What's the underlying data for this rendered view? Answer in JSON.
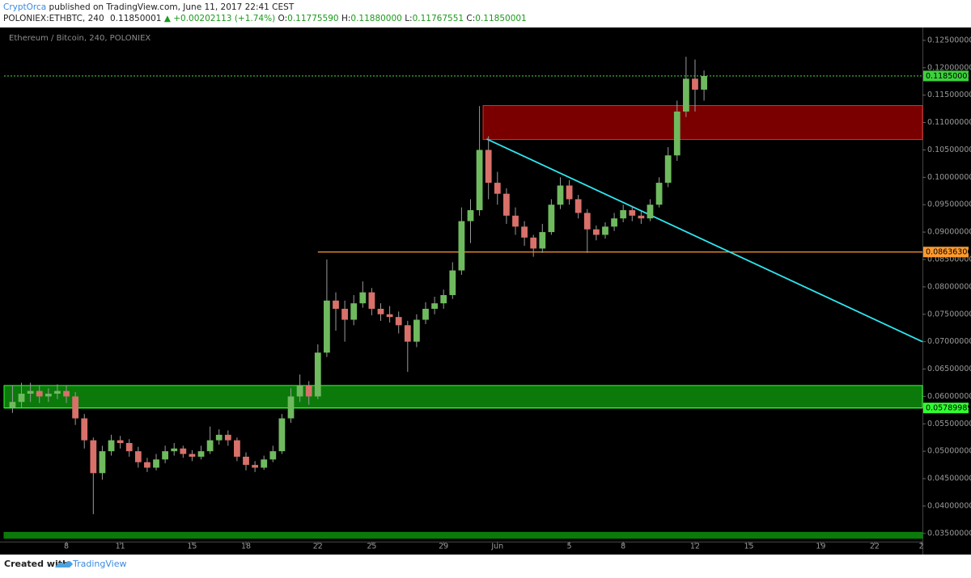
{
  "header": {
    "author": "CryptOrca",
    "published": "published on TradingView.com, June 11, 2017 22:41 CEST"
  },
  "quote": {
    "symbol": "POLONIEX:ETHBTC, 240",
    "last": "0.11850001",
    "change": "▲ +0.00202113 (+1.74%)",
    "o_label": "O:",
    "o": "0.11775590",
    "h_label": "H:",
    "h": "0.11880000",
    "l_label": "L:",
    "l": "0.11767551",
    "c_label": "C:",
    "c": "0.11850001"
  },
  "footer": {
    "created": "Created with",
    "brand": "TradingView"
  },
  "chart_data": {
    "type": "candlestick",
    "title": "Ethereum / Bitcoin, 240, POLONIEX",
    "up_color": "#6fba5e",
    "down_color": "#d9706a",
    "wick_color": "#9a9a9a",
    "x": [
      5.0,
      5.5,
      6.0,
      6.5,
      7.0,
      7.5,
      8.0,
      8.5,
      9.0,
      9.5,
      10.0,
      10.5,
      11.0,
      11.5,
      12.0,
      12.5,
      13.0,
      13.5,
      14.0,
      14.5,
      15.0,
      15.5,
      16.0,
      16.5,
      17.0,
      17.5,
      18.0,
      18.5,
      19.0,
      19.5,
      20.0,
      20.5,
      21.0,
      21.5,
      22.0,
      22.5,
      23.0,
      23.5,
      24.0,
      24.5,
      25.0,
      25.5,
      26.0,
      26.5,
      27.0,
      27.5,
      28.0,
      28.5,
      29.0,
      29.5,
      30.0,
      30.5,
      31.0,
      31.5,
      32.0,
      32.5,
      33.0,
      33.5,
      34.0,
      34.5,
      35.0,
      35.5,
      36.0,
      36.5,
      37.0,
      37.5,
      38.0,
      38.5,
      39.0,
      39.5,
      40.0,
      40.5,
      41.0,
      41.5,
      42.0,
      42.5,
      43.0,
      43.5
    ],
    "open": [
      0.058,
      0.059,
      0.0605,
      0.061,
      0.06,
      0.0605,
      0.061,
      0.06,
      0.056,
      0.052,
      0.046,
      0.05,
      0.052,
      0.0515,
      0.05,
      0.048,
      0.047,
      0.0485,
      0.05,
      0.0505,
      0.0495,
      0.049,
      0.05,
      0.052,
      0.053,
      0.052,
      0.049,
      0.0475,
      0.047,
      0.0485,
      0.05,
      0.056,
      0.06,
      0.062,
      0.06,
      0.068,
      0.0775,
      0.076,
      0.074,
      0.077,
      0.079,
      0.076,
      0.075,
      0.0745,
      0.073,
      0.07,
      0.074,
      0.076,
      0.077,
      0.0785,
      0.083,
      0.092,
      0.094,
      0.105,
      0.099,
      0.097,
      0.093,
      0.091,
      0.089,
      0.087,
      0.09,
      0.095,
      0.0985,
      0.096,
      0.0935,
      0.0905,
      0.0895,
      0.091,
      0.0925,
      0.094,
      0.093,
      0.0925,
      0.095,
      0.099,
      0.104,
      0.112,
      0.118,
      0.116
    ],
    "high": [
      0.062,
      0.0625,
      0.0625,
      0.062,
      0.0615,
      0.0622,
      0.062,
      0.0608,
      0.0568,
      0.0525,
      0.051,
      0.053,
      0.0528,
      0.0522,
      0.0508,
      0.0488,
      0.0495,
      0.051,
      0.0515,
      0.051,
      0.0502,
      0.051,
      0.0545,
      0.054,
      0.0538,
      0.0525,
      0.0498,
      0.0482,
      0.0492,
      0.051,
      0.0568,
      0.0615,
      0.064,
      0.0628,
      0.0695,
      0.085,
      0.079,
      0.0775,
      0.0785,
      0.081,
      0.0798,
      0.077,
      0.0765,
      0.0755,
      0.0738,
      0.075,
      0.0772,
      0.0782,
      0.0795,
      0.0845,
      0.0945,
      0.096,
      0.113,
      0.1075,
      0.101,
      0.098,
      0.0945,
      0.092,
      0.0895,
      0.0915,
      0.096,
      0.1,
      0.0995,
      0.0968,
      0.0942,
      0.0912,
      0.0918,
      0.0935,
      0.095,
      0.0948,
      0.0938,
      0.096,
      0.1,
      0.1055,
      0.114,
      0.122,
      0.1215,
      0.1195
    ],
    "low": [
      0.057,
      0.058,
      0.059,
      0.0588,
      0.059,
      0.0595,
      0.0588,
      0.0548,
      0.0505,
      0.0385,
      0.0448,
      0.0492,
      0.0505,
      0.049,
      0.047,
      0.0462,
      0.0465,
      0.0478,
      0.0492,
      0.0488,
      0.0482,
      0.0485,
      0.0495,
      0.0512,
      0.051,
      0.0482,
      0.0465,
      0.0462,
      0.0466,
      0.048,
      0.0495,
      0.0552,
      0.059,
      0.0585,
      0.0595,
      0.0672,
      0.072,
      0.07,
      0.073,
      0.0762,
      0.0748,
      0.0738,
      0.0735,
      0.0715,
      0.0645,
      0.069,
      0.0732,
      0.075,
      0.076,
      0.0778,
      0.0822,
      0.088,
      0.093,
      0.096,
      0.095,
      0.0915,
      0.0895,
      0.0875,
      0.0855,
      0.0862,
      0.0895,
      0.0942,
      0.095,
      0.0925,
      0.0862,
      0.0885,
      0.0888,
      0.0902,
      0.0918,
      0.092,
      0.0915,
      0.092,
      0.0945,
      0.0982,
      0.103,
      0.111,
      0.112,
      0.114
    ],
    "close": [
      0.059,
      0.0605,
      0.061,
      0.06,
      0.0605,
      0.061,
      0.06,
      0.056,
      0.052,
      0.046,
      0.05,
      0.052,
      0.0515,
      0.05,
      0.048,
      0.047,
      0.0485,
      0.05,
      0.0505,
      0.0495,
      0.049,
      0.05,
      0.052,
      0.053,
      0.052,
      0.049,
      0.0475,
      0.047,
      0.0485,
      0.05,
      0.056,
      0.06,
      0.062,
      0.06,
      0.068,
      0.0775,
      0.076,
      0.074,
      0.077,
      0.079,
      0.076,
      0.075,
      0.0745,
      0.073,
      0.07,
      0.074,
      0.076,
      0.077,
      0.0785,
      0.083,
      0.092,
      0.094,
      0.105,
      0.099,
      0.097,
      0.093,
      0.091,
      0.089,
      0.087,
      0.09,
      0.095,
      0.0985,
      0.096,
      0.0935,
      0.0905,
      0.0895,
      0.091,
      0.0925,
      0.094,
      0.093,
      0.0925,
      0.095,
      0.099,
      0.104,
      0.112,
      0.118,
      0.116,
      0.1185
    ],
    "xlim": [
      4.53,
      55.66
    ],
    "ylim": [
      0.0335,
      0.1272
    ],
    "xticks": [
      8,
      11,
      15,
      18,
      22,
      25,
      29,
      {
        "value": 32,
        "label": "Jun"
      },
      {
        "value": 36,
        "label": "5"
      },
      {
        "value": 39,
        "label": "8"
      },
      {
        "value": 43,
        "label": "12"
      },
      {
        "value": 46,
        "label": "15"
      },
      {
        "value": 50,
        "label": "19"
      },
      {
        "value": 53,
        "label": "22"
      },
      {
        "value": 55.6,
        "label": "2"
      }
    ],
    "yticks": [
      {
        "value": 0.035,
        "label": "0.03500000"
      },
      {
        "value": 0.04,
        "label": "0.04000000"
      },
      {
        "value": 0.045,
        "label": "0.04500000"
      },
      {
        "value": 0.05,
        "label": "0.05000000"
      },
      {
        "value": 0.055,
        "label": "0.05500000"
      },
      {
        "value": 0.06,
        "label": "0.06000000"
      },
      {
        "value": 0.065,
        "label": "0.06500000"
      },
      {
        "value": 0.07,
        "label": "0.07000000"
      },
      {
        "value": 0.075,
        "label": "0.07500000"
      },
      {
        "value": 0.08,
        "label": "0.08000000"
      },
      {
        "value": 0.085,
        "label": "0.08500000"
      },
      {
        "value": 0.09,
        "label": "0.09000000"
      },
      {
        "value": 0.095,
        "label": "0.09500000"
      },
      {
        "value": 0.1,
        "label": "0.10000000"
      },
      {
        "value": 0.105,
        "label": "0.10500000"
      },
      {
        "value": 0.11,
        "label": "0.11000000"
      },
      {
        "value": 0.115,
        "label": "0.11500000"
      },
      {
        "value": 0.12,
        "label": "0.12000000"
      },
      {
        "value": 0.125,
        "label": "0.12500000"
      }
    ],
    "grid": false,
    "zones": [
      {
        "from": 31.2,
        "low": 0.1069,
        "high": 0.1131,
        "color": "#7a0000",
        "edge": "#e0302a"
      },
      {
        "from": 4.53,
        "low": 0.0579,
        "high": 0.062,
        "color": "#0b7a0b",
        "edge": "#30ff30"
      },
      {
        "from": 4.53,
        "low": 0.0341,
        "high": 0.0352,
        "color": "#0b7a0b",
        "edge": "#0b7a0b"
      }
    ],
    "price_lines": [
      {
        "value": 0.11850001,
        "from": 4.53,
        "color": "#3cc83c",
        "dashed": true,
        "tag_color": "#3cd23c"
      },
      {
        "value": 0.08636306,
        "from": 22.0,
        "color": "#ff9a2e",
        "dashed": false,
        "tag_color": "#ff9a2e"
      },
      {
        "value": 0.05789989,
        "from": 4.53,
        "color": "#30ff30",
        "dashed": false,
        "tag_color": "#30ff30"
      }
    ],
    "trend_lines": [
      {
        "x": [
          31.4,
          55.66
        ],
        "y": [
          0.107,
          0.07
        ],
        "color": "#2ee6f0"
      }
    ]
  }
}
